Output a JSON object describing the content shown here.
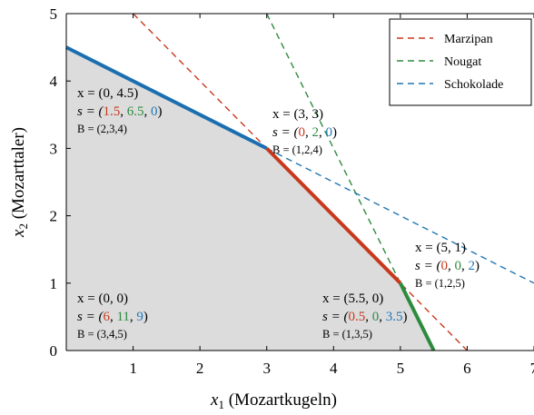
{
  "chart_data": {
    "type": "line",
    "xlim": [
      0,
      7
    ],
    "ylim": [
      0,
      5
    ],
    "x_ticks": [
      "1",
      "2",
      "3",
      "4",
      "5",
      "6",
      "7"
    ],
    "y_ticks": [
      "0",
      "1",
      "2",
      "3",
      "4",
      "5"
    ],
    "xlabel": {
      "var": "x",
      "sub": "1",
      "text": " (Mozartkugeln)"
    },
    "ylabel": {
      "var": "x",
      "sub": "2",
      "text": " (Mozarttaler)"
    },
    "grid": false,
    "legend_position": "top-right",
    "colors": {
      "marzipan": "#c8391c",
      "nougat": "#2e8b3e",
      "schokolade": "#1f77b4",
      "feasible_fill": "#dcdcdc",
      "edge_blue": "#1a6fb0",
      "edge_red": "#c8391c",
      "edge_green": "#2e8b3e"
    },
    "constraints": [
      {
        "name": "Marzipan",
        "color_key": "marzipan",
        "points": [
          [
            1,
            5
          ],
          [
            6,
            0
          ]
        ]
      },
      {
        "name": "Nougat",
        "color_key": "nougat",
        "points": [
          [
            3,
            5
          ],
          [
            5.5,
            0
          ]
        ]
      },
      {
        "name": "Schokolade",
        "color_key": "schokolade",
        "points": [
          [
            3,
            3
          ],
          [
            7,
            1
          ]
        ]
      }
    ],
    "feasible_region": [
      [
        0,
        0
      ],
      [
        0,
        4.5
      ],
      [
        3,
        3
      ],
      [
        5,
        1
      ],
      [
        5.5,
        0
      ]
    ],
    "edges": [
      {
        "color_key": "edge_blue",
        "points": [
          [
            0,
            4.5
          ],
          [
            3,
            3
          ]
        ]
      },
      {
        "color_key": "edge_red",
        "points": [
          [
            3,
            3
          ],
          [
            5,
            1
          ]
        ]
      },
      {
        "color_key": "edge_green",
        "points": [
          [
            5,
            1
          ],
          [
            5.5,
            0
          ]
        ]
      }
    ],
    "vertices": [
      {
        "x": 0,
        "y": 4.5,
        "x_text": "x = (0, 4.5)",
        "s": [
          "1.5",
          "6.5",
          "0"
        ],
        "B": "B = (2,3,4)"
      },
      {
        "x": 3,
        "y": 3,
        "x_text": "x = (3, 3)",
        "s": [
          "0",
          "2",
          "0"
        ],
        "B": "B = (1,2,4)"
      },
      {
        "x": 0,
        "y": 0,
        "x_text": "x = (0, 0)",
        "s": [
          "6",
          "11",
          "9"
        ],
        "B": "B = (3,4,5)"
      },
      {
        "x": 5.5,
        "y": 0,
        "x_text": "x = (5.5, 0)",
        "s": [
          "0.5",
          "0",
          "3.5"
        ],
        "B": "B = (1,3,5)"
      },
      {
        "x": 5,
        "y": 1,
        "x_text": "x = (5, 1)",
        "s": [
          "0",
          "0",
          "2"
        ],
        "B": "B = (1,2,5)"
      }
    ]
  }
}
